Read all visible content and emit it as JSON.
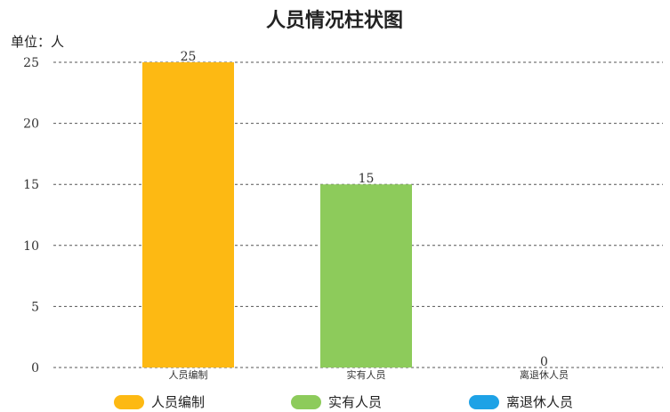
{
  "chart_data": {
    "type": "bar",
    "title": "人员情况柱状图",
    "unit_label": "单位：人",
    "xlabel": "",
    "ylabel": "",
    "categories": [
      "人员编制",
      "实有人员",
      "离退休人员"
    ],
    "values": [
      25,
      15,
      0
    ],
    "colors": [
      "#FDB913",
      "#8DCB5B",
      "#1EA2E6"
    ],
    "ylim": [
      0,
      25
    ],
    "yticks": [
      0,
      5,
      10,
      15,
      20,
      25
    ],
    "grid": true,
    "legend_position": "bottom",
    "legend": [
      {
        "label": "人员编制",
        "color": "#FDB913"
      },
      {
        "label": "实有人员",
        "color": "#8DCB5B"
      },
      {
        "label": "离退休人员",
        "color": "#1EA2E6"
      }
    ]
  }
}
